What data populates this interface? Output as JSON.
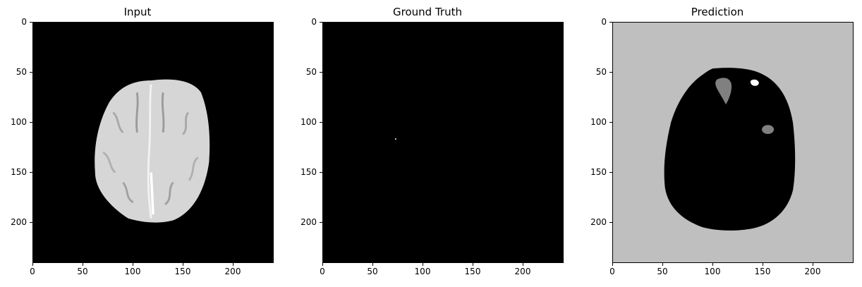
{
  "figure": {
    "panels": [
      {
        "title": "Input"
      },
      {
        "title": "Ground Truth"
      },
      {
        "title": "Prediction"
      }
    ],
    "axis_ticks": {
      "y": [
        "0",
        "50",
        "100",
        "150",
        "200"
      ],
      "x": [
        "0",
        "50",
        "100",
        "150",
        "200"
      ]
    },
    "colors": {
      "background_black": "#000000",
      "prediction_background": "#bfbfbf",
      "brain_gray": "#d4d4d4",
      "lesion_gray": "#808080",
      "white": "#ffffff"
    }
  }
}
